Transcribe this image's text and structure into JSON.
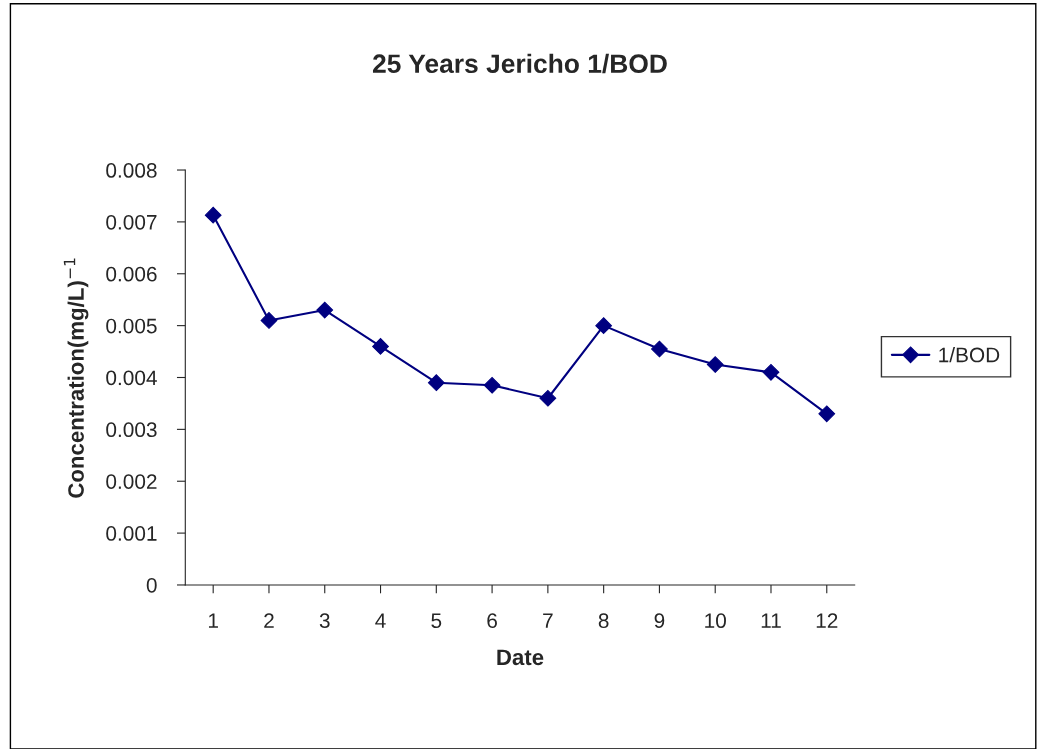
{
  "chart_data": {
    "type": "line",
    "title": "25 Years Jericho 1/BOD",
    "xlabel": "Date",
    "ylabel": "Concentration(mg/L)$^{−1}$",
    "categories": [
      "1",
      "2",
      "3",
      "4",
      "5",
      "6",
      "7",
      "8",
      "9",
      "10",
      "11",
      "12"
    ],
    "series": [
      {
        "name": "1/BOD",
        "color": "#000080",
        "values": [
          0.00713,
          0.0051,
          0.0053,
          0.0046,
          0.0039,
          0.00385,
          0.0036,
          0.005,
          0.00455,
          0.00425,
          0.0041,
          0.0033
        ]
      }
    ],
    "ylim": [
      0,
      0.008
    ],
    "yticks": [
      0,
      0.001,
      0.002,
      0.003,
      0.004,
      0.005,
      0.006,
      0.007,
      0.008
    ],
    "grid": false,
    "legend": "right",
    "marker": "diamond",
    "line_style": "solid"
  }
}
